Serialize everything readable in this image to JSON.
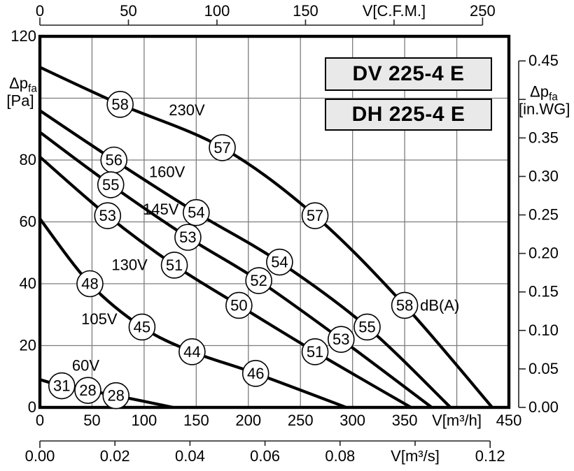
{
  "chart_data": {
    "type": "line",
    "title": "",
    "model_labels": [
      "DV 225-4 E",
      "DH 225-4 E"
    ],
    "colors": {
      "curve": "#000000",
      "grid": "#7d7d7d",
      "axis": "#222222",
      "box_fill": "#e9e9e9",
      "box_border": "#000000",
      "marker_fill": "#ffffff",
      "text": "#000000"
    },
    "axes": {
      "x_bottom": {
        "unit": "m³/h",
        "range": [
          0,
          450
        ],
        "ticks": [
          0,
          50,
          100,
          150,
          200,
          250,
          300,
          350,
          400,
          450
        ],
        "tick_labels": [
          "0",
          "50",
          "100",
          "150",
          "200",
          "250",
          "300",
          "350",
          "V[m³/h]",
          "450"
        ]
      },
      "x_bottom_secondary": {
        "unit": "m³/s",
        "m3h_per_unit": 3600,
        "range": [
          0,
          0.12
        ],
        "ticks": [
          0,
          0.02,
          0.04,
          0.06,
          0.08,
          0.1,
          0.12
        ],
        "tick_labels": [
          "0.00",
          "0.02",
          "0.04",
          "0.06",
          "0.08",
          "V[m³/s]",
          "0.12"
        ]
      },
      "x_top": {
        "unit": "C.F.M.",
        "m3h_per_unit": 1.699,
        "range": [
          0,
          250
        ],
        "ticks": [
          0,
          50,
          100,
          150,
          200,
          250
        ],
        "tick_labels": [
          "0",
          "50",
          "100",
          "150",
          "V[C.F.M.]",
          "250"
        ]
      },
      "y_left": {
        "unit": "Pa",
        "range": [
          0,
          120
        ],
        "ticks": [
          0,
          20,
          40,
          60,
          80,
          100,
          120
        ],
        "tick_labels": [
          "0",
          "20",
          "40",
          "60",
          "80",
          "",
          "120"
        ],
        "axis_label": {
          "at_tick": 100,
          "lines": [
            [
              [
                "Δp",
                ""
              ],
              [
                "fa",
                "sub"
              ]
            ],
            [
              [
                "[Pa]",
                ""
              ]
            ]
          ]
        }
      },
      "y_right": {
        "unit": "in.WG",
        "pa_per_unit": 249,
        "range": [
          0,
          0.45
        ],
        "ticks": [
          0,
          0.05,
          0.1,
          0.15,
          0.2,
          0.25,
          0.3,
          0.35,
          0.4,
          0.45
        ],
        "tick_labels": [
          "0.00",
          "0.05",
          "0.10",
          "0.15",
          "0.20",
          "0.25",
          "0.30",
          "0.35",
          "",
          "0.45"
        ],
        "axis_label": {
          "at_tick": 0.4,
          "lines": [
            [
              [
                "Δp",
                ""
              ],
              [
                "fa",
                "sub"
              ]
            ],
            [
              [
                "[in.WG]",
                ""
              ]
            ]
          ]
        }
      }
    },
    "grid": {
      "x_m3h": [
        50,
        100,
        150,
        200,
        250,
        300,
        350,
        400
      ],
      "y_pa": [
        20,
        40,
        60,
        80,
        100
      ]
    },
    "series": [
      {
        "name": "230V",
        "label_pos": [
          141,
          96
        ],
        "points": [
          [
            0,
            110
          ],
          [
            77,
            98
          ],
          [
            175,
            84
          ],
          [
            264,
            62
          ],
          [
            350,
            33
          ],
          [
            434,
            0
          ]
        ],
        "markers": [
          {
            "db": 58,
            "at": [
              77,
              98
            ]
          },
          {
            "db": 57,
            "at": [
              175,
              84
            ]
          },
          {
            "db": 57,
            "at": [
              264,
              62
            ]
          },
          {
            "db": 58,
            "at": [
              350,
              33
            ],
            "suffix": "dB(A)"
          }
        ]
      },
      {
        "name": "160V",
        "label_pos": [
          122,
          76
        ],
        "points": [
          [
            0,
            96
          ],
          [
            71,
            80
          ],
          [
            150,
            63
          ],
          [
            230,
            47
          ],
          [
            314,
            26
          ],
          [
            394,
            0
          ]
        ],
        "markers": [
          {
            "db": 56,
            "at": [
              71,
              80
            ]
          },
          {
            "db": 54,
            "at": [
              150,
              63
            ]
          },
          {
            "db": 54,
            "at": [
              230,
              47
            ]
          },
          {
            "db": 55,
            "at": [
              314,
              26
            ]
          }
        ]
      },
      {
        "name": "145V",
        "label_pos": [
          116,
          64
        ],
        "points": [
          [
            0,
            89
          ],
          [
            68,
            72
          ],
          [
            142,
            55
          ],
          [
            210,
            41
          ],
          [
            289,
            22
          ],
          [
            376,
            0
          ]
        ],
        "markers": [
          {
            "db": 55,
            "at": [
              68,
              72
            ]
          },
          {
            "db": 53,
            "at": [
              142,
              55
            ]
          },
          {
            "db": 52,
            "at": [
              210,
              41
            ]
          },
          {
            "db": 53,
            "at": [
              289,
              22
            ]
          }
        ]
      },
      {
        "name": "130V",
        "label_pos": [
          86,
          46
        ],
        "points": [
          [
            0,
            81
          ],
          [
            65,
            62
          ],
          [
            129,
            46
          ],
          [
            191,
            33
          ],
          [
            264,
            18
          ],
          [
            356,
            0
          ]
        ],
        "markers": [
          {
            "db": 53,
            "at": [
              65,
              62
            ]
          },
          {
            "db": 51,
            "at": [
              129,
              46
            ]
          },
          {
            "db": 50,
            "at": [
              191,
              33
            ]
          },
          {
            "db": 51,
            "at": [
              264,
              18
            ]
          }
        ]
      },
      {
        "name": "105V",
        "label_pos": [
          57,
          28.5
        ],
        "points": [
          [
            0,
            61
          ],
          [
            48,
            40
          ],
          [
            98,
            26
          ],
          [
            146,
            18
          ],
          [
            207,
            11
          ],
          [
            294,
            0
          ]
        ],
        "markers": [
          {
            "db": 48,
            "at": [
              48,
              40
            ]
          },
          {
            "db": 45,
            "at": [
              98,
              26
            ]
          },
          {
            "db": 44,
            "at": [
              146,
              18
            ]
          },
          {
            "db": 46,
            "at": [
              207,
              11
            ]
          }
        ]
      },
      {
        "name": "60V",
        "label_pos": [
          44,
          13.5
        ],
        "points": [
          [
            0,
            9
          ],
          [
            21,
            7
          ],
          [
            46,
            5.5
          ],
          [
            73,
            3.8
          ],
          [
            128,
            0
          ]
        ],
        "markers": [
          {
            "db": 31,
            "at": [
              21,
              7
            ]
          },
          {
            "db": 28,
            "at": [
              46,
              5.5
            ]
          },
          {
            "db": 28,
            "at": [
              73,
              3.8
            ]
          }
        ]
      }
    ]
  }
}
